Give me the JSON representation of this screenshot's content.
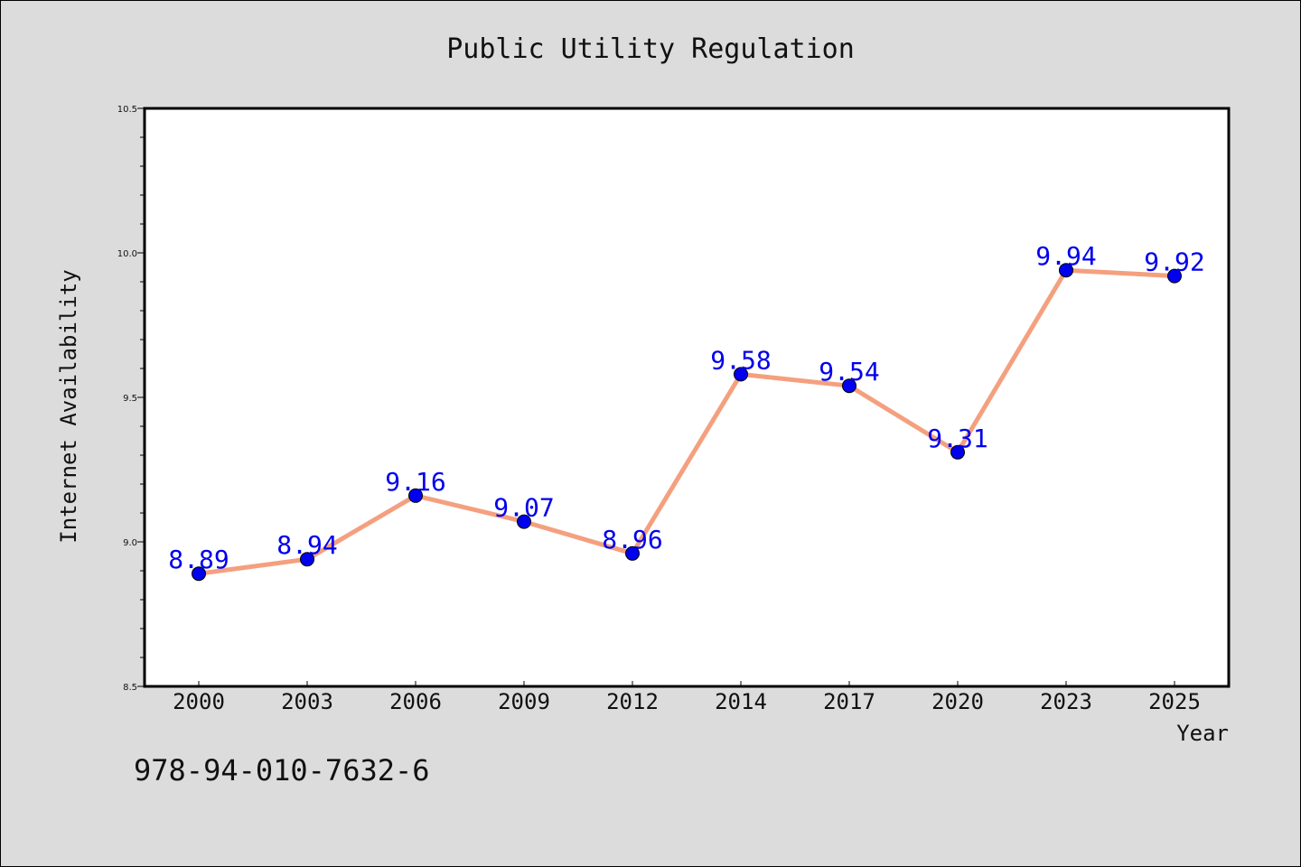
{
  "footer": {
    "code": "978-94-010-7632-6"
  },
  "chart_data": {
    "type": "line",
    "title": "Public Utility Regulation",
    "xlabel": "Year",
    "ylabel": "Internet Availability",
    "categories": [
      "2000",
      "2003",
      "2006",
      "2009",
      "2012",
      "2014",
      "2017",
      "2020",
      "2023",
      "2025"
    ],
    "series": [
      {
        "values": [
          8.89,
          8.94,
          9.16,
          9.07,
          8.96,
          9.58,
          9.54,
          9.31,
          9.94,
          9.92
        ]
      }
    ],
    "data_labels": [
      "8.89",
      "8.94",
      "9.16",
      "9.07",
      "8.96",
      "9.58",
      "9.54",
      "9.31",
      "9.94",
      "9.92"
    ],
    "ylim": [
      8.5,
      10.5
    ],
    "yticks": [
      "8.5",
      "9.0",
      "9.5",
      "10.0",
      "10.5"
    ],
    "grid": false,
    "colors": {
      "line": "#f4a07f",
      "marker": "#0000ee",
      "label": "#0000ee"
    }
  }
}
